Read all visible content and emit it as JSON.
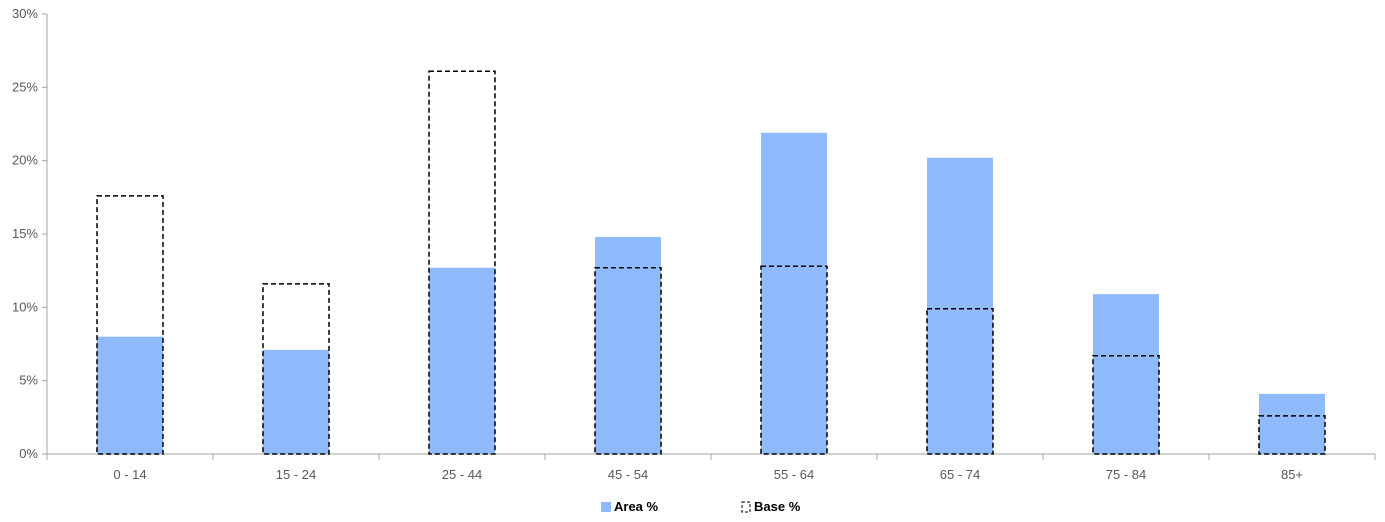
{
  "chart_data": {
    "type": "bar",
    "title": "",
    "xlabel": "",
    "ylabel": "",
    "categories": [
      "0 - 14",
      "15 - 24",
      "25 - 44",
      "45 - 54",
      "55 - 64",
      "65 - 74",
      "75 - 84",
      "85+"
    ],
    "y_ticks": [
      "0%",
      "5%",
      "10%",
      "15%",
      "20%",
      "25%",
      "30%"
    ],
    "ylim": [
      0,
      30
    ],
    "grid": false,
    "legend_position": "bottom",
    "series": [
      {
        "name": "Area %",
        "style": "solid",
        "color": "#8fbbfd",
        "values": [
          8.0,
          7.1,
          12.7,
          14.8,
          21.9,
          20.2,
          10.9,
          4.1
        ]
      },
      {
        "name": "Base %",
        "style": "dashed-outline",
        "color": "#000000",
        "values": [
          17.6,
          11.6,
          26.1,
          12.7,
          12.8,
          9.9,
          6.7,
          2.6
        ]
      }
    ]
  }
}
